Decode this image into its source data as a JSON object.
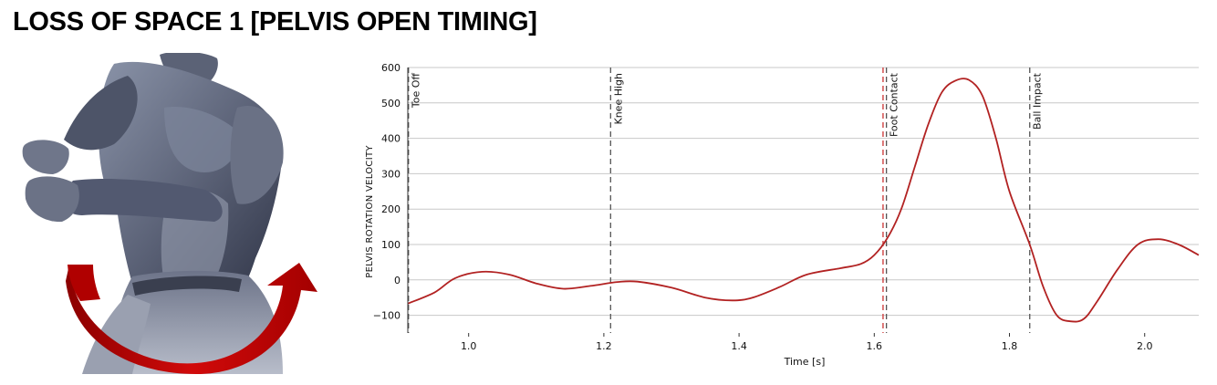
{
  "page": {
    "title": "LOSS OF SPACE 1 [PELVIS OPEN TIMING]"
  },
  "illustration": {
    "subject": "torso-figure",
    "arrow_color": "#c8000a"
  },
  "chart_data": {
    "type": "line",
    "xlabel": "Time [s]",
    "ylabel": "PELVIS ROTATION VELOCITY",
    "xlim": [
      0.91,
      2.08
    ],
    "ylim": [
      -150,
      600
    ],
    "xticks": [
      1.0,
      1.2,
      1.4,
      1.6,
      1.8,
      2.0
    ],
    "xtick_labels": [
      "1.0",
      "1.2",
      "1.4",
      "1.6",
      "1.8",
      "2.0"
    ],
    "yticks": [
      600,
      500,
      400,
      300,
      200,
      100,
      0,
      -100
    ],
    "ytick_labels": [
      "600",
      "500",
      "400",
      "300",
      "200",
      "100",
      "0",
      "−100"
    ],
    "grid": "horizontal",
    "series": [
      {
        "color": "#b22222",
        "points": [
          [
            0.91,
            -67
          ],
          [
            0.95,
            -35
          ],
          [
            0.98,
            5
          ],
          [
            1.02,
            23
          ],
          [
            1.06,
            15
          ],
          [
            1.1,
            -10
          ],
          [
            1.14,
            -25
          ],
          [
            1.18,
            -17
          ],
          [
            1.22,
            -6
          ],
          [
            1.25,
            -5
          ],
          [
            1.3,
            -22
          ],
          [
            1.35,
            -50
          ],
          [
            1.39,
            -58
          ],
          [
            1.42,
            -50
          ],
          [
            1.46,
            -20
          ],
          [
            1.5,
            15
          ],
          [
            1.55,
            33
          ],
          [
            1.58,
            45
          ],
          [
            1.6,
            70
          ],
          [
            1.62,
            120
          ],
          [
            1.64,
            200
          ],
          [
            1.66,
            320
          ],
          [
            1.68,
            440
          ],
          [
            1.7,
            530
          ],
          [
            1.72,
            563
          ],
          [
            1.74,
            565
          ],
          [
            1.76,
            520
          ],
          [
            1.78,
            400
          ],
          [
            1.8,
            250
          ],
          [
            1.83,
            100
          ],
          [
            1.85,
            -20
          ],
          [
            1.87,
            -100
          ],
          [
            1.89,
            -117
          ],
          [
            1.91,
            -110
          ],
          [
            1.93,
            -60
          ],
          [
            1.96,
            30
          ],
          [
            1.99,
            100
          ],
          [
            2.02,
            115
          ],
          [
            2.05,
            100
          ],
          [
            2.08,
            70
          ]
        ]
      }
    ],
    "events": [
      {
        "label": "Toe Off",
        "x": 0.911,
        "color": "#555555"
      },
      {
        "label": "Knee High",
        "x": 1.21,
        "color": "#555555"
      },
      {
        "label": "Foot Contact",
        "x": 1.618,
        "color": "#555555"
      },
      {
        "label": "Ball Impact",
        "x": 1.83,
        "color": "#555555"
      }
    ],
    "extra_marker": {
      "x": 1.613,
      "color": "#cc3333"
    }
  }
}
